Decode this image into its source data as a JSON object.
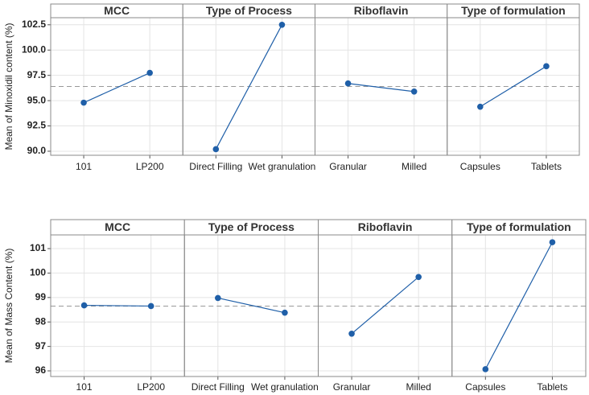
{
  "chart_data": [
    {
      "type": "line",
      "ylabel": "Mean of Minoxidil content (%)",
      "ylim": [
        89.6,
        103.2
      ],
      "yticks": [
        {
          "value": 90,
          "label": "90.0"
        },
        92.5,
        {
          "value": 95,
          "label": "95.0"
        },
        97.5,
        {
          "value": 100,
          "label": "100.0"
        },
        102.5
      ],
      "mean_line": 96.4,
      "color": "#1f5fa8",
      "grid": true,
      "panels": [
        {
          "title": "MCC",
          "categories": [
            "101",
            "LP200"
          ],
          "values": [
            94.8,
            97.75
          ]
        },
        {
          "title": "Type of Process",
          "categories": [
            "Direct Filling",
            "Wet granulation"
          ],
          "values": [
            90.2,
            102.5
          ]
        },
        {
          "title": "Riboflavin",
          "categories": [
            "Granular",
            "Milled"
          ],
          "values": [
            96.7,
            95.9
          ]
        },
        {
          "title": "Type of formulation",
          "categories": [
            "Capsules",
            "Tablets"
          ],
          "values": [
            94.4,
            98.4
          ]
        }
      ]
    },
    {
      "type": "line",
      "ylabel": "Mean of Mass Content (%)",
      "ylim": [
        95.77,
        101.56
      ],
      "yticks": [
        96,
        97,
        98,
        99,
        100,
        101
      ],
      "mean_line": 98.65,
      "color": "#1f5fa8",
      "grid": true,
      "panels": [
        {
          "title": "MCC",
          "categories": [
            "101",
            "LP200"
          ],
          "values": [
            98.68,
            98.65
          ]
        },
        {
          "title": "Type of Process",
          "categories": [
            "Direct Filling",
            "Wet granulation"
          ],
          "values": [
            98.98,
            98.38
          ]
        },
        {
          "title": "Riboflavin",
          "categories": [
            "Granular",
            "Milled"
          ],
          "values": [
            97.52,
            99.84
          ]
        },
        {
          "title": "Type of formulation",
          "categories": [
            "Capsules",
            "Tablets"
          ],
          "values": [
            96.07,
            101.26
          ]
        }
      ]
    }
  ]
}
